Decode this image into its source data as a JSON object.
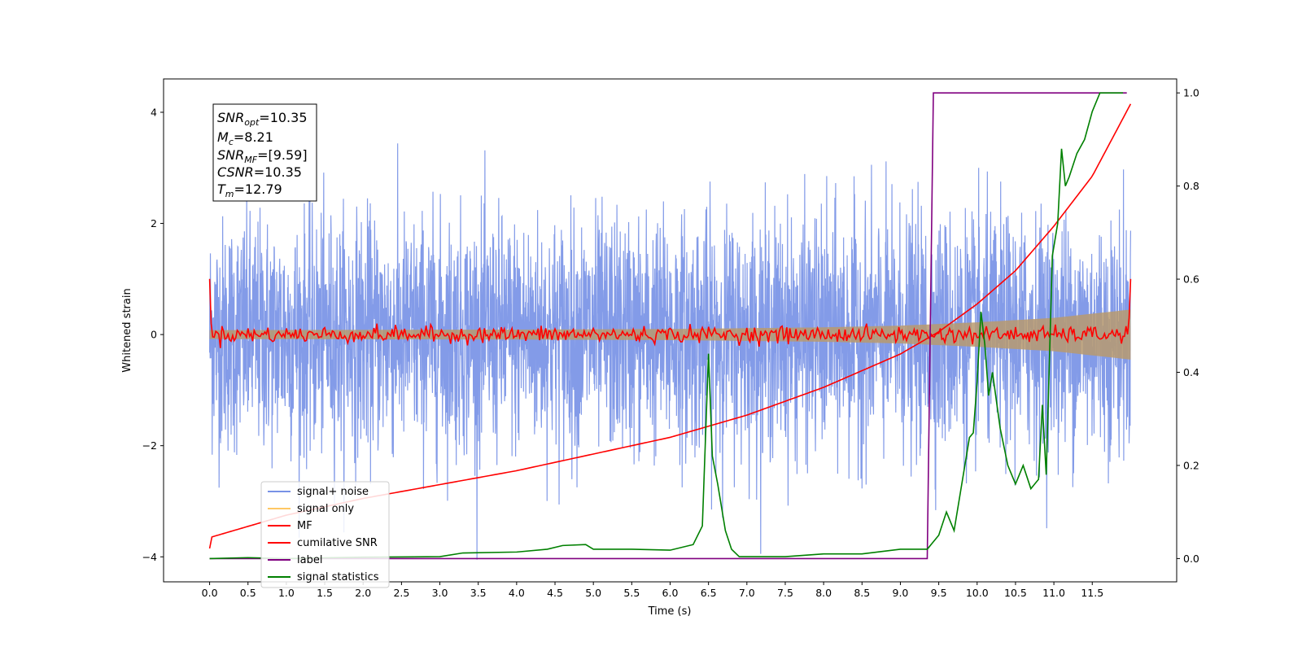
{
  "chart_data": {
    "type": "line",
    "xlabel": "Time (s)",
    "ylabel": "Whitened strain",
    "xlim": [
      -0.6,
      12.6
    ],
    "ylim": [
      -4.45,
      4.6
    ],
    "ylim_right": [
      -0.05,
      1.03
    ],
    "x_ticks": [
      "0.0",
      "0.5",
      "1.0",
      "1.5",
      "2.0",
      "2.5",
      "3.0",
      "3.5",
      "4.0",
      "4.5",
      "5.0",
      "5.5",
      "6.0",
      "6.5",
      "7.0",
      "7.5",
      "8.0",
      "8.5",
      "9.0",
      "9.5",
      "10.0",
      "10.5",
      "11.0",
      "11.5"
    ],
    "y_ticks_left": [
      "4",
      "2",
      "0",
      "−2",
      "−4"
    ],
    "y_ticks_right": [
      "1.0",
      "0.8",
      "0.6",
      "0.4",
      "0.2",
      "0.0"
    ],
    "grid": false,
    "legend_position": "lower-left",
    "legend": [
      {
        "label": "signal+ noise",
        "color": "#7892e6"
      },
      {
        "label": "signal only",
        "color": "#ffc864"
      },
      {
        "label": "MF",
        "color": "#ff0000"
      },
      {
        "label": "cumilative SNR",
        "color": "#ff0000"
      },
      {
        "label": "label",
        "color": "#800080"
      },
      {
        "label": "signal statistics",
        "color": "#008000"
      }
    ],
    "annotations": {
      "snr_opt": "=10.35",
      "mc": "=8.21",
      "snr_mf": "=[9.59]",
      "csnr": "=10.35",
      "tm": "=12.79"
    },
    "series": [
      {
        "name": "signal+ noise",
        "axis": "left",
        "color": "#7892e6",
        "description": "whitened strain noise, roughly within ±3.5, occasional spikes to ±4",
        "x_range": [
          0.0,
          12.0
        ],
        "amplitude_envelope": 2.4
      },
      {
        "name": "signal only",
        "axis": "left",
        "color": "#ffc864",
        "x_range": [
          0.0,
          12.0
        ],
        "envelope": {
          "x": [
            0.0,
            4.0,
            6.0,
            8.0,
            9.0,
            10.0,
            11.0,
            12.0
          ],
          "amplitude": [
            0.08,
            0.09,
            0.1,
            0.13,
            0.16,
            0.22,
            0.3,
            0.45
          ]
        }
      },
      {
        "name": "MF",
        "axis": "left",
        "color": "#ff0000",
        "description": "matched filter output fluctuating near 0 with spikes to 1.0 at both ends",
        "x_range": [
          0.0,
          12.0
        ],
        "start_value": 1.0,
        "end_value": 1.0,
        "noise_amplitude": 0.12
      },
      {
        "name": "cumilative SNR",
        "axis": "left",
        "color": "#ff0000",
        "x": [
          0.0,
          0.01,
          1.0,
          2.0,
          3.0,
          4.0,
          5.0,
          6.0,
          7.0,
          8.0,
          9.0,
          9.5,
          10.0,
          10.5,
          11.0,
          11.5,
          12.0
        ],
        "values": [
          -3.85,
          -3.65,
          -3.25,
          -2.95,
          -2.7,
          -2.45,
          -2.15,
          -1.85,
          -1.45,
          -0.95,
          -0.35,
          0.05,
          0.55,
          1.15,
          1.95,
          2.85,
          4.15
        ]
      },
      {
        "name": "label",
        "axis": "right",
        "color": "#800080",
        "x": [
          0.0,
          9.35,
          9.43,
          11.95
        ],
        "values": [
          0.0,
          0.0,
          1.0,
          1.0
        ]
      },
      {
        "name": "signal statistics",
        "axis": "right",
        "color": "#008000",
        "x": [
          0.0,
          0.5,
          1.0,
          2.0,
          3.0,
          3.3,
          4.0,
          4.4,
          4.6,
          4.9,
          5.0,
          5.5,
          6.0,
          6.3,
          6.42,
          6.5,
          6.55,
          6.62,
          6.72,
          6.8,
          6.9,
          7.5,
          8.0,
          8.5,
          9.0,
          9.35,
          9.5,
          9.6,
          9.7,
          9.8,
          9.9,
          9.95,
          10.0,
          10.05,
          10.1,
          10.15,
          10.2,
          10.3,
          10.4,
          10.5,
          10.6,
          10.7,
          10.8,
          10.85,
          10.9,
          10.98,
          11.05,
          11.1,
          11.15,
          11.2,
          11.3,
          11.4,
          11.5,
          11.6,
          11.65,
          11.9
        ],
        "values": [
          0.0,
          0.002,
          0.0,
          0.003,
          0.004,
          0.012,
          0.014,
          0.02,
          0.028,
          0.03,
          0.02,
          0.02,
          0.018,
          0.03,
          0.07,
          0.44,
          0.22,
          0.16,
          0.06,
          0.02,
          0.004,
          0.004,
          0.01,
          0.01,
          0.02,
          0.02,
          0.05,
          0.1,
          0.06,
          0.16,
          0.26,
          0.27,
          0.38,
          0.53,
          0.46,
          0.35,
          0.4,
          0.28,
          0.2,
          0.16,
          0.2,
          0.15,
          0.17,
          0.33,
          0.18,
          0.65,
          0.72,
          0.88,
          0.8,
          0.82,
          0.87,
          0.9,
          0.96,
          1.0,
          1.0,
          1.0
        ]
      }
    ]
  }
}
